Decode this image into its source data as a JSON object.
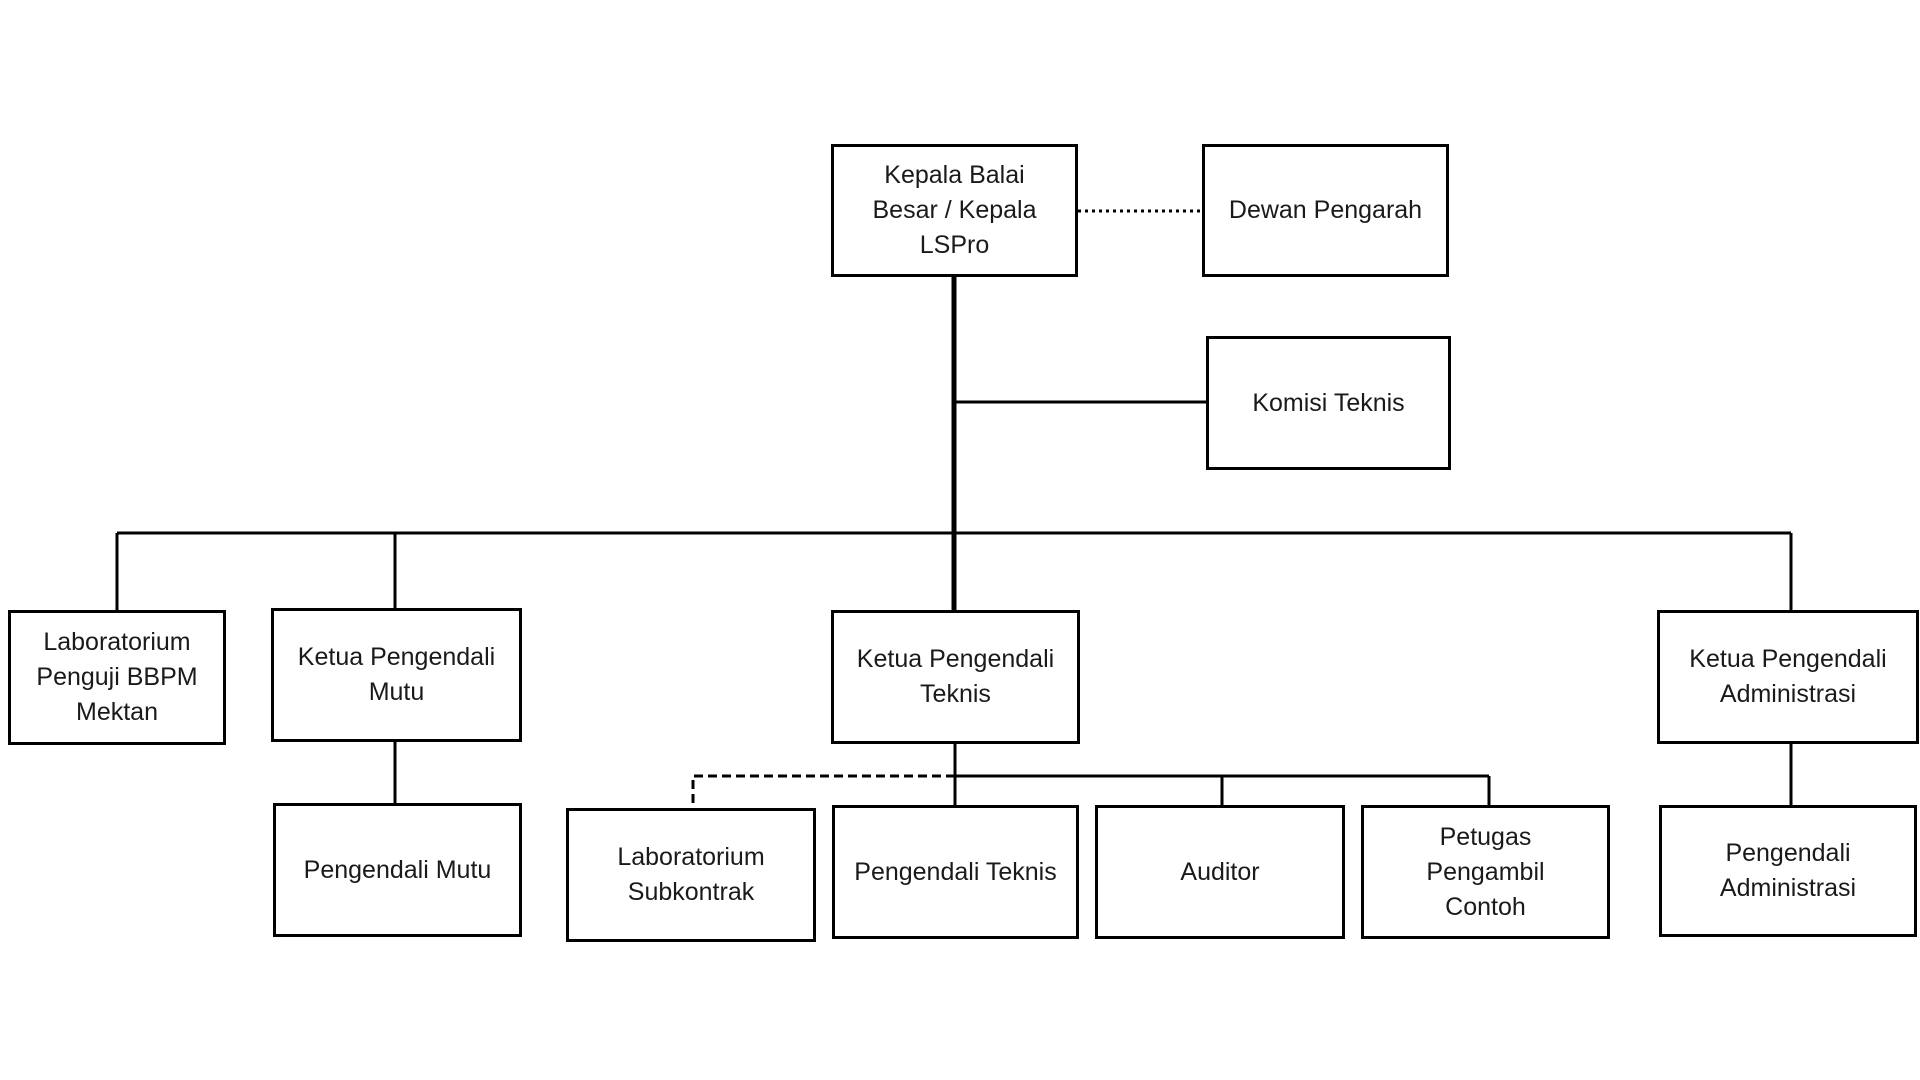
{
  "nodes": {
    "kepala": "Kepala Balai\nBesar / Kepala\nLSPro",
    "dewan": "Dewan Pengarah",
    "komisi": "Komisi Teknis",
    "lab_penguji": "Laboratorium\nPenguji BBPM\nMektan",
    "ketua_mutu": "Ketua Pengendali\nMutu",
    "ketua_teknis": "Ketua Pengendali\nTeknis",
    "ketua_admin": "Ketua Pengendali\nAdministrasi",
    "pengendali_mutu": "Pengendali Mutu",
    "lab_subkontrak": "Laboratorium\nSubkontrak",
    "pengendali_teknis": "Pengendali Teknis",
    "auditor": "Auditor",
    "petugas": "Petugas\nPengambil\nContoh",
    "pengendali_admin": "Pengendali\nAdministrasi"
  }
}
